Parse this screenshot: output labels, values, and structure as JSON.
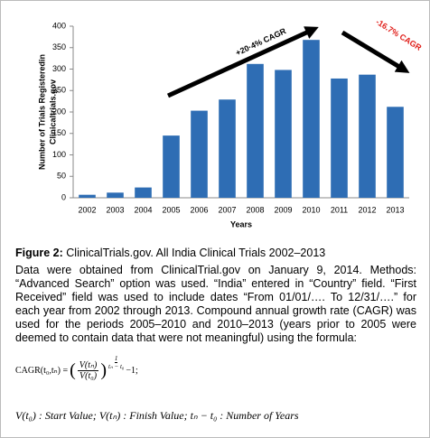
{
  "chart_data": {
    "type": "bar",
    "y_label_lines": [
      "Number of Trials Registeredin",
      "Clinicaltrials.gov"
    ],
    "x_label": "Years",
    "categories": [
      "2002",
      "2003",
      "2004",
      "2005",
      "2006",
      "2007",
      "2008",
      "2009",
      "2010",
      "2011",
      "2012",
      "2013"
    ],
    "values": [
      7,
      12,
      24,
      145,
      203,
      229,
      312,
      298,
      368,
      278,
      287,
      212
    ],
    "color": "#2e6db4",
    "ylim": [
      0,
      400
    ],
    "yticks": [
      0,
      50,
      100,
      150,
      200,
      250,
      300,
      350,
      400
    ],
    "grid": false,
    "annotations": [
      {
        "text": "+20·4% CAGR",
        "color": "#000000"
      },
      {
        "text": "-16.7% CAGR",
        "color": "#e0201b"
      }
    ]
  },
  "caption": {
    "label": "Figure 2:",
    "text": "ClinicalTrials.gov. All India Clinical Trials 2002–2013"
  },
  "paragraph": "Data were obtained from ClinicalTrial.gov on January 9, 2014. Methods: “Advanced Search” option was used. “India” entered in “Country” field. “First Received” field was used to include dates “From 01/01/…. To 12/31/….” for each year from 2002 through 2013. Compound annual growth rate (CAGR) was used for the periods 2005–2010 and 2010–2013 (years prior to 2005 were deemed to contain data that were not meaningful) using the formula:",
  "formula": {
    "lhs": "CAGR(t₀,tₙ) =",
    "numerator": "V(tₙ)",
    "denominator": "V(t₀)",
    "exp_num": "1",
    "exp_den": "tₙ − t₀",
    "tail": "−1;"
  },
  "legend_line": "V(t₀) : Start Value; V(tₙ) : Finish Value; tₙ − t₀ : Number of Years"
}
